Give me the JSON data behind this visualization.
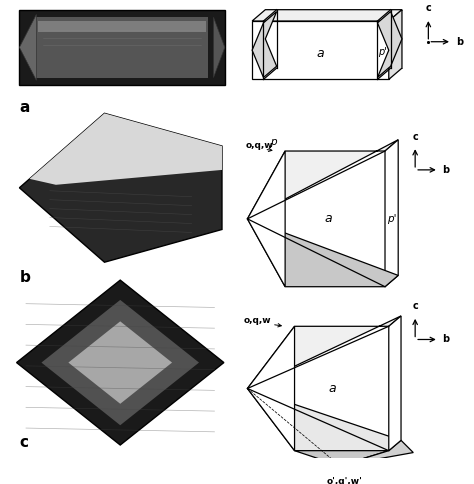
{
  "bg_color": "#ffffff",
  "fig_width": 4.74,
  "fig_height": 4.84,
  "labels": {
    "a": "a",
    "b": "b",
    "c": "c",
    "p": "p",
    "p_prime": "p'",
    "oqw": "o,q,w",
    "oqw_prime": "o',q',w'"
  },
  "section_labels": [
    "a",
    "b",
    "c"
  ]
}
